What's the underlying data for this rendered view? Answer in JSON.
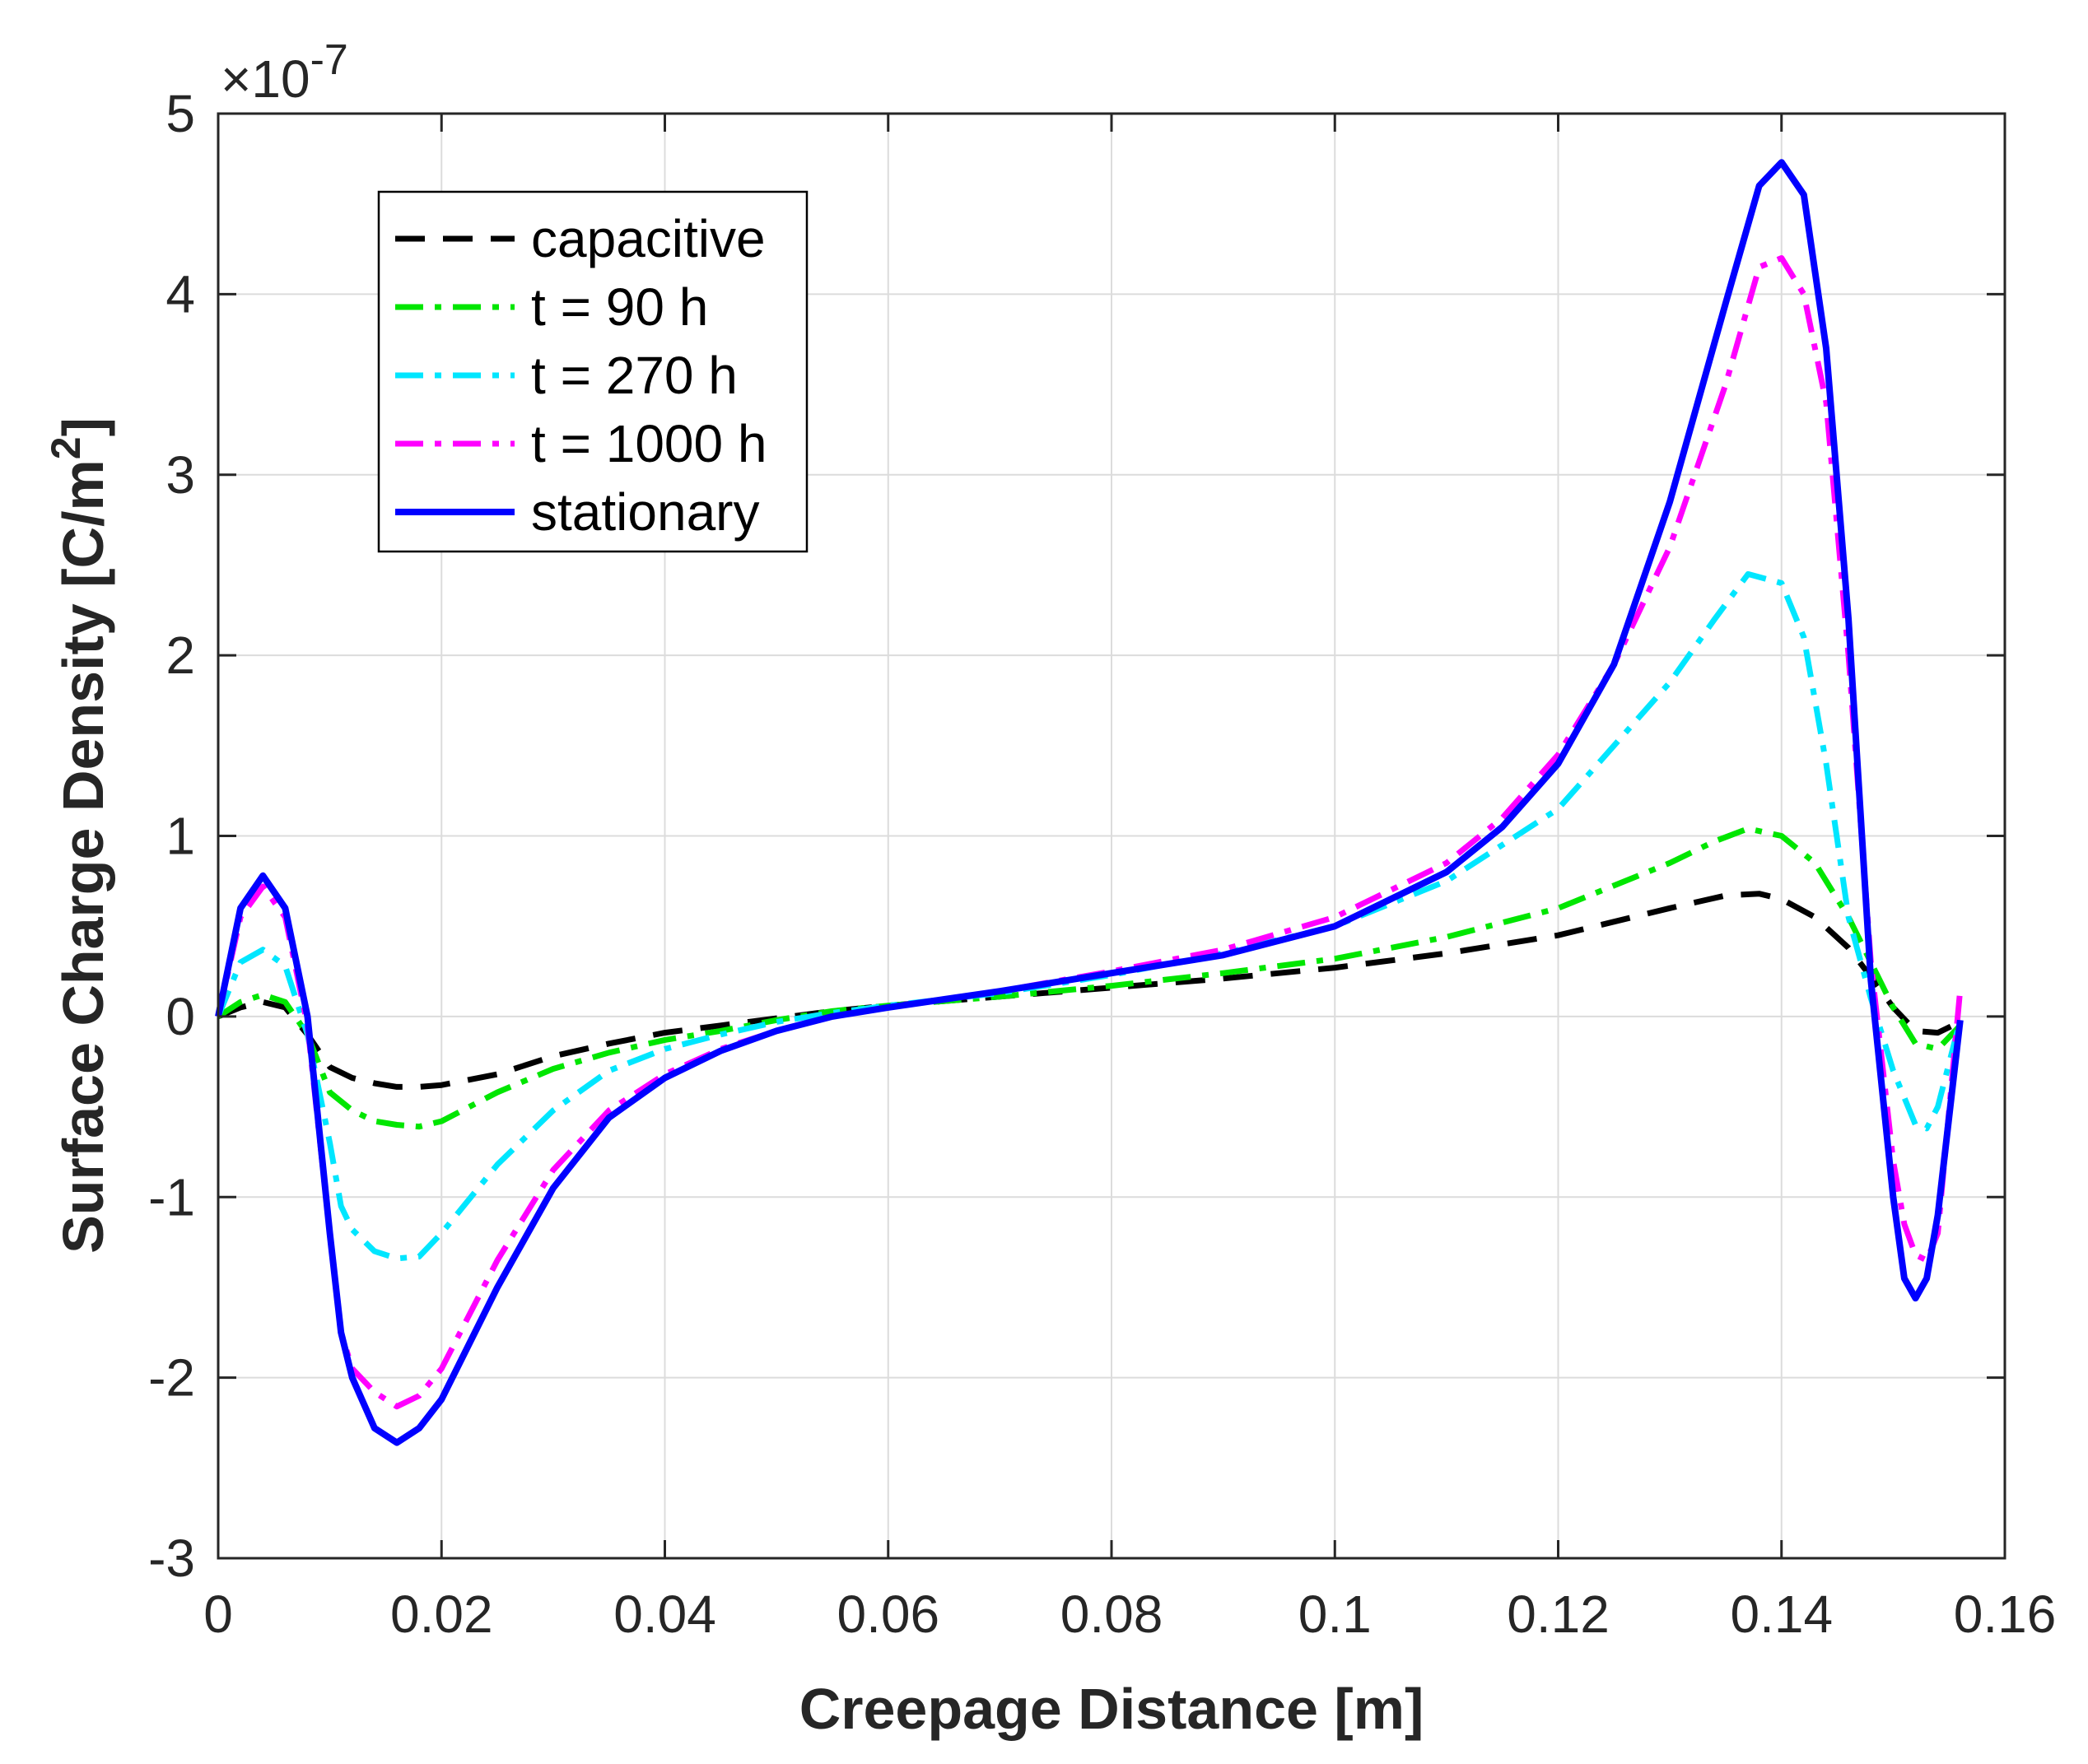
{
  "chart_data": {
    "type": "line",
    "xlabel": "Creepage Distance [m]",
    "ylabel_main": "Surface Charge Density [C/m",
    "ylabel_sup": "2",
    "ylabel_close": "]",
    "y_multiplier": "×10",
    "y_multiplier_exp": "-7",
    "xlim": [
      0,
      0.16
    ],
    "ylim": [
      -3,
      5
    ],
    "grid": true,
    "legend_position": "top-left",
    "x_ticks": [
      0,
      0.02,
      0.04,
      0.06,
      0.08,
      0.1,
      0.12,
      0.14,
      0.16
    ],
    "x_tick_labels": [
      "0",
      "0.02",
      "0.04",
      "0.06",
      "0.08",
      "0.1",
      "0.12",
      "0.14",
      "0.16"
    ],
    "y_ticks": [
      -3,
      -2,
      -1,
      0,
      1,
      2,
      3,
      4,
      5
    ],
    "y_tick_labels": [
      "-3",
      "-2",
      "-1",
      "0",
      "1",
      "2",
      "3",
      "4",
      "5"
    ],
    "series": [
      {
        "name": "capacitive",
        "color": "#000000",
        "style": "dashed",
        "x": [
          0,
          0.002,
          0.004,
          0.006,
          0.008,
          0.01,
          0.012,
          0.014,
          0.016,
          0.018,
          0.02,
          0.025,
          0.03,
          0.035,
          0.04,
          0.045,
          0.05,
          0.055,
          0.06,
          0.07,
          0.08,
          0.09,
          0.1,
          0.11,
          0.12,
          0.13,
          0.135,
          0.138,
          0.14,
          0.143,
          0.146,
          0.148,
          0.15,
          0.152,
          0.154,
          0.156
        ],
        "y": [
          0,
          0.05,
          0.08,
          0.05,
          -0.1,
          -0.28,
          -0.34,
          -0.37,
          -0.39,
          -0.39,
          -0.38,
          -0.32,
          -0.22,
          -0.15,
          -0.09,
          -0.05,
          -0.01,
          0.03,
          0.06,
          0.11,
          0.16,
          0.21,
          0.27,
          0.35,
          0.45,
          0.6,
          0.67,
          0.68,
          0.65,
          0.55,
          0.38,
          0.22,
          0.05,
          -0.08,
          -0.09,
          -0.03
        ]
      },
      {
        "name": "t = 90 h",
        "color": "#00e600",
        "style": "dashdot",
        "x": [
          0,
          0.002,
          0.004,
          0.006,
          0.008,
          0.01,
          0.012,
          0.014,
          0.016,
          0.018,
          0.02,
          0.025,
          0.03,
          0.035,
          0.04,
          0.045,
          0.05,
          0.055,
          0.06,
          0.07,
          0.08,
          0.09,
          0.1,
          0.11,
          0.12,
          0.13,
          0.134,
          0.137,
          0.14,
          0.143,
          0.146,
          0.148,
          0.15,
          0.152,
          0.154,
          0.156
        ],
        "y": [
          0,
          0.08,
          0.12,
          0.08,
          -0.1,
          -0.42,
          -0.52,
          -0.58,
          -0.6,
          -0.61,
          -0.58,
          -0.42,
          -0.29,
          -0.2,
          -0.13,
          -0.08,
          -0.02,
          0.03,
          0.06,
          0.11,
          0.17,
          0.24,
          0.32,
          0.44,
          0.6,
          0.85,
          0.97,
          1.04,
          1.0,
          0.85,
          0.55,
          0.3,
          0.05,
          -0.15,
          -0.18,
          -0.05
        ]
      },
      {
        "name": "t = 270 h",
        "color": "#00e6ff",
        "style": "dashdot",
        "x": [
          0,
          0.002,
          0.004,
          0.006,
          0.008,
          0.01,
          0.011,
          0.012,
          0.014,
          0.016,
          0.018,
          0.02,
          0.025,
          0.03,
          0.035,
          0.04,
          0.045,
          0.05,
          0.055,
          0.06,
          0.07,
          0.08,
          0.09,
          0.1,
          0.11,
          0.12,
          0.125,
          0.13,
          0.134,
          0.137,
          0.14,
          0.142,
          0.144,
          0.146,
          0.148,
          0.15,
          0.152,
          0.153,
          0.154,
          0.156
        ],
        "y": [
          0,
          0.3,
          0.37,
          0.28,
          -0.1,
          -0.7,
          -1.05,
          -1.18,
          -1.3,
          -1.34,
          -1.33,
          -1.2,
          -0.82,
          -0.52,
          -0.3,
          -0.18,
          -0.1,
          -0.03,
          0.02,
          0.06,
          0.13,
          0.23,
          0.35,
          0.5,
          0.75,
          1.15,
          1.5,
          1.85,
          2.2,
          2.45,
          2.4,
          2.1,
          1.4,
          0.55,
          0.1,
          -0.3,
          -0.6,
          -0.62,
          -0.5,
          -0.02
        ]
      },
      {
        "name": "t = 1000 h",
        "color": "#ff00ff",
        "style": "dashdot",
        "x": [
          0,
          0.002,
          0.004,
          0.006,
          0.008,
          0.01,
          0.011,
          0.012,
          0.014,
          0.016,
          0.018,
          0.02,
          0.025,
          0.03,
          0.035,
          0.04,
          0.045,
          0.05,
          0.055,
          0.06,
          0.07,
          0.08,
          0.09,
          0.1,
          0.11,
          0.115,
          0.12,
          0.125,
          0.13,
          0.135,
          0.138,
          0.14,
          0.142,
          0.144,
          0.146,
          0.148,
          0.15,
          0.151,
          0.152,
          0.153,
          0.154,
          0.156
        ],
        "y": [
          0,
          0.55,
          0.72,
          0.55,
          -0.05,
          -1.2,
          -1.75,
          -1.95,
          -2.08,
          -2.16,
          -2.1,
          -1.95,
          -1.35,
          -0.85,
          -0.52,
          -0.32,
          -0.18,
          -0.08,
          0.0,
          0.05,
          0.14,
          0.25,
          0.37,
          0.55,
          0.85,
          1.1,
          1.45,
          1.95,
          2.6,
          3.5,
          4.15,
          4.2,
          4.0,
          3.4,
          2.0,
          0.3,
          -0.8,
          -1.15,
          -1.32,
          -1.35,
          -1.2,
          0.15
        ]
      },
      {
        "name": "stationary",
        "color": "#0000ff",
        "style": "solid",
        "x": [
          0,
          0.002,
          0.004,
          0.006,
          0.008,
          0.01,
          0.011,
          0.012,
          0.014,
          0.016,
          0.018,
          0.02,
          0.025,
          0.03,
          0.035,
          0.04,
          0.045,
          0.05,
          0.055,
          0.06,
          0.07,
          0.08,
          0.09,
          0.1,
          0.11,
          0.115,
          0.12,
          0.125,
          0.13,
          0.135,
          0.138,
          0.14,
          0.142,
          0.144,
          0.146,
          0.148,
          0.15,
          0.151,
          0.152,
          0.153,
          0.154,
          0.156
        ],
        "y": [
          0,
          0.6,
          0.78,
          0.6,
          0.0,
          -1.2,
          -1.75,
          -2.0,
          -2.28,
          -2.36,
          -2.28,
          -2.12,
          -1.5,
          -0.95,
          -0.56,
          -0.34,
          -0.19,
          -0.08,
          0.0,
          0.05,
          0.14,
          0.24,
          0.34,
          0.5,
          0.8,
          1.05,
          1.4,
          1.95,
          2.85,
          3.95,
          4.6,
          4.73,
          4.55,
          3.7,
          2.2,
          0.2,
          -1.0,
          -1.45,
          -1.56,
          -1.45,
          -1.1,
          -0.02
        ]
      }
    ]
  }
}
